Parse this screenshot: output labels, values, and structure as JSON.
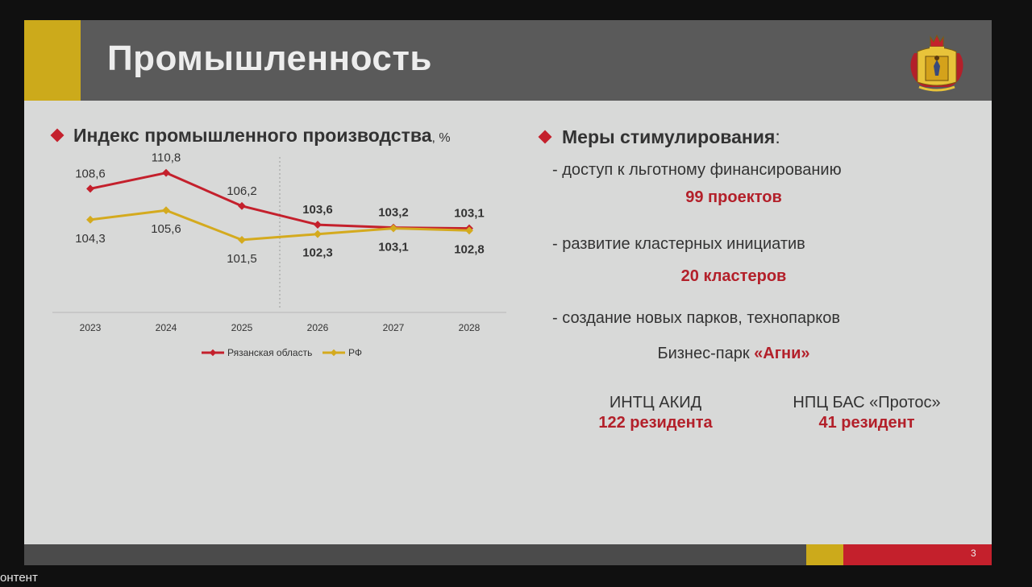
{
  "slide": {
    "title": "Промышленность",
    "page_number": "3"
  },
  "left_section": {
    "title": "Индекс промышленного производства",
    "title_unit": ", %"
  },
  "chart_data": {
    "type": "line",
    "x": [
      "2023",
      "2024",
      "2025",
      "2026",
      "2027",
      "2028"
    ],
    "series": [
      {
        "name": "Рязанская область",
        "color": "#c4202c",
        "values": [
          108.6,
          110.8,
          106.2,
          103.6,
          103.2,
          103.1
        ],
        "labels": [
          "108,6",
          "110,8",
          "106,2",
          "103,6",
          "103,2",
          "103,1"
        ]
      },
      {
        "name": "РФ",
        "color": "#d4aa1e",
        "values": [
          104.3,
          105.6,
          101.5,
          102.3,
          103.1,
          102.8
        ],
        "labels": [
          "104,3",
          "105,6",
          "101,5",
          "102,3",
          "103,1",
          "102,8"
        ]
      }
    ],
    "ylim": [
      94,
      113
    ],
    "grid": false,
    "forecast_divider_after": "2025",
    "legend_position": "bottom"
  },
  "right_section": {
    "title": "Меры стимулирования",
    "title_colon": ":",
    "measure1": "- доступ к льготному финансированию",
    "measure1_value": "99 проектов",
    "measure2": "- развитие кластерных инициатив",
    "measure2_value": "20 кластеров",
    "measure3": "- создание новых парков, технопарков",
    "park_prefix": "Бизнес-парк ",
    "park_name": "«Агни»",
    "center1_name": "ИНТЦ АКИД",
    "center1_value": "122 резидента",
    "center2_name": "НПЦ БАС «Протос»",
    "center2_value": "41 резидент"
  },
  "caption": "онтент",
  "colors": {
    "accent_red": "#c4202c",
    "accent_yellow": "#ccaa1b",
    "header_gray": "#5a5a5a"
  }
}
